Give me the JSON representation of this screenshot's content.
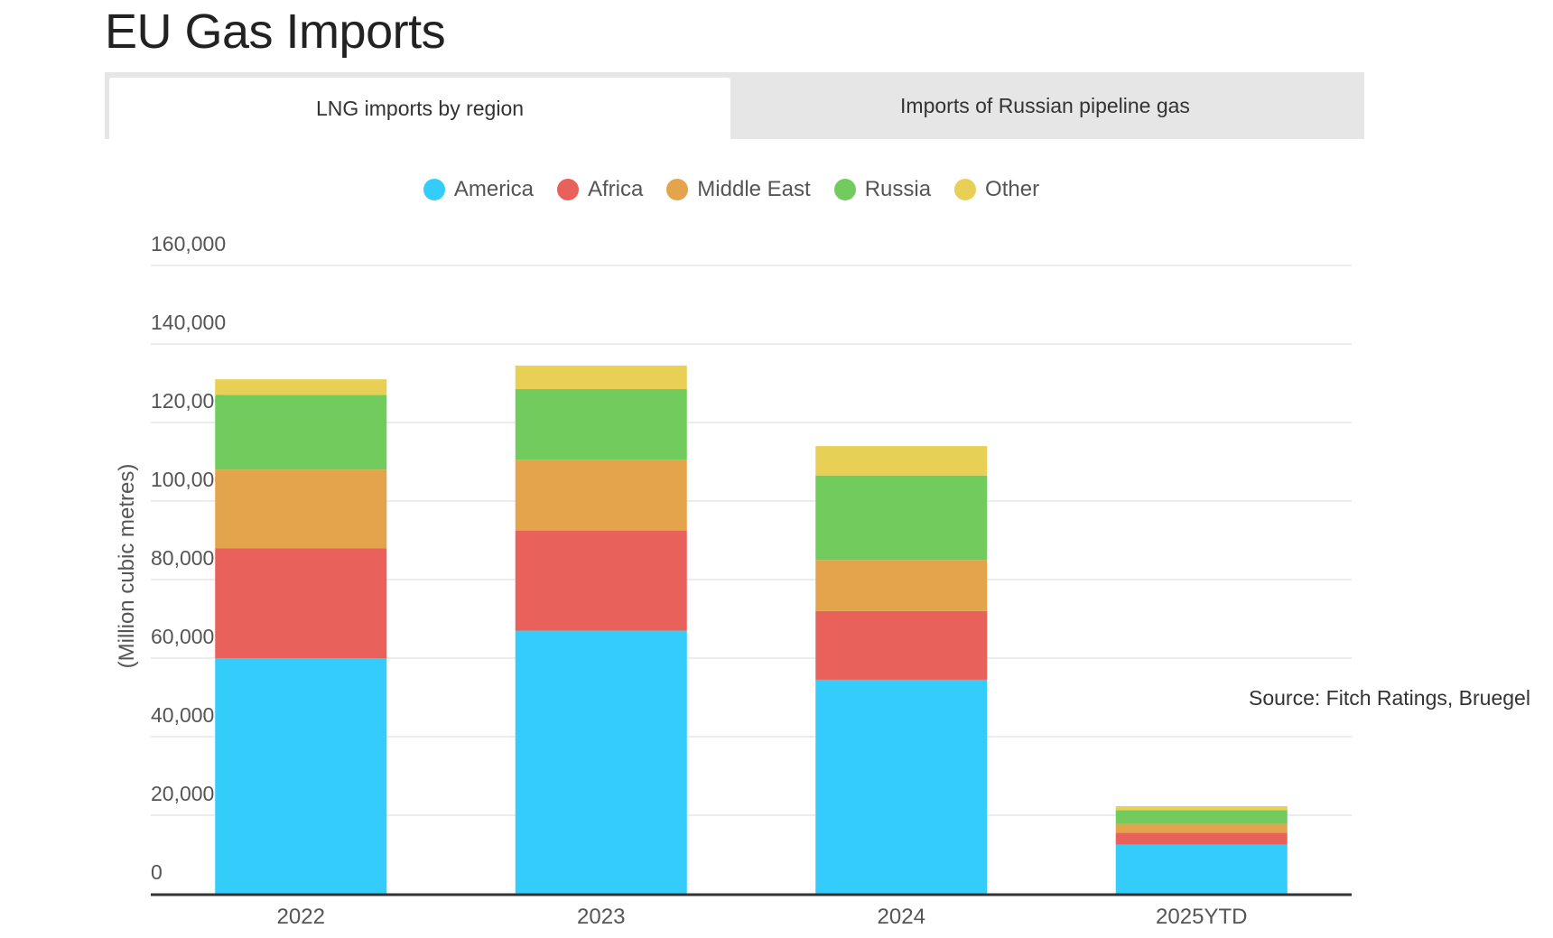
{
  "page": {
    "title": "EU Gas Imports",
    "source": "Source: Fitch Ratings, Bruegel"
  },
  "tabs": [
    {
      "label": "LNG imports by region",
      "active": true
    },
    {
      "label": "Imports of Russian pipeline gas",
      "active": false
    }
  ],
  "chart_data": {
    "type": "bar",
    "stacked": true,
    "title": "",
    "xlabel": "",
    "ylabel": "(Million cubic metres)",
    "categories": [
      "2022",
      "2023",
      "2024",
      "2025YTD"
    ],
    "ylim": [
      0,
      160000
    ],
    "yticks": [
      0,
      20000,
      40000,
      60000,
      80000,
      100000,
      120000,
      140000,
      160000
    ],
    "ytick_labels": [
      "0",
      "20,000",
      "40,000",
      "60,000",
      "80,000",
      "100,000",
      "120,000",
      "140,000",
      "160,000"
    ],
    "grid": true,
    "legend_position": "top-center",
    "series": [
      {
        "name": "America",
        "color": "#33ccfb",
        "values": [
          60000,
          67000,
          54500,
          12500
        ]
      },
      {
        "name": "Africa",
        "color": "#e8615a",
        "values": [
          28000,
          25500,
          17500,
          3000
        ]
      },
      {
        "name": "Middle East",
        "color": "#e3a44c",
        "values": [
          20000,
          18000,
          13000,
          2300
        ]
      },
      {
        "name": "Russia",
        "color": "#72cc5d",
        "values": [
          19000,
          18000,
          21500,
          3500
        ]
      },
      {
        "name": "Other",
        "color": "#e8cf55",
        "values": [
          4000,
          6000,
          7500,
          1000
        ]
      }
    ]
  }
}
